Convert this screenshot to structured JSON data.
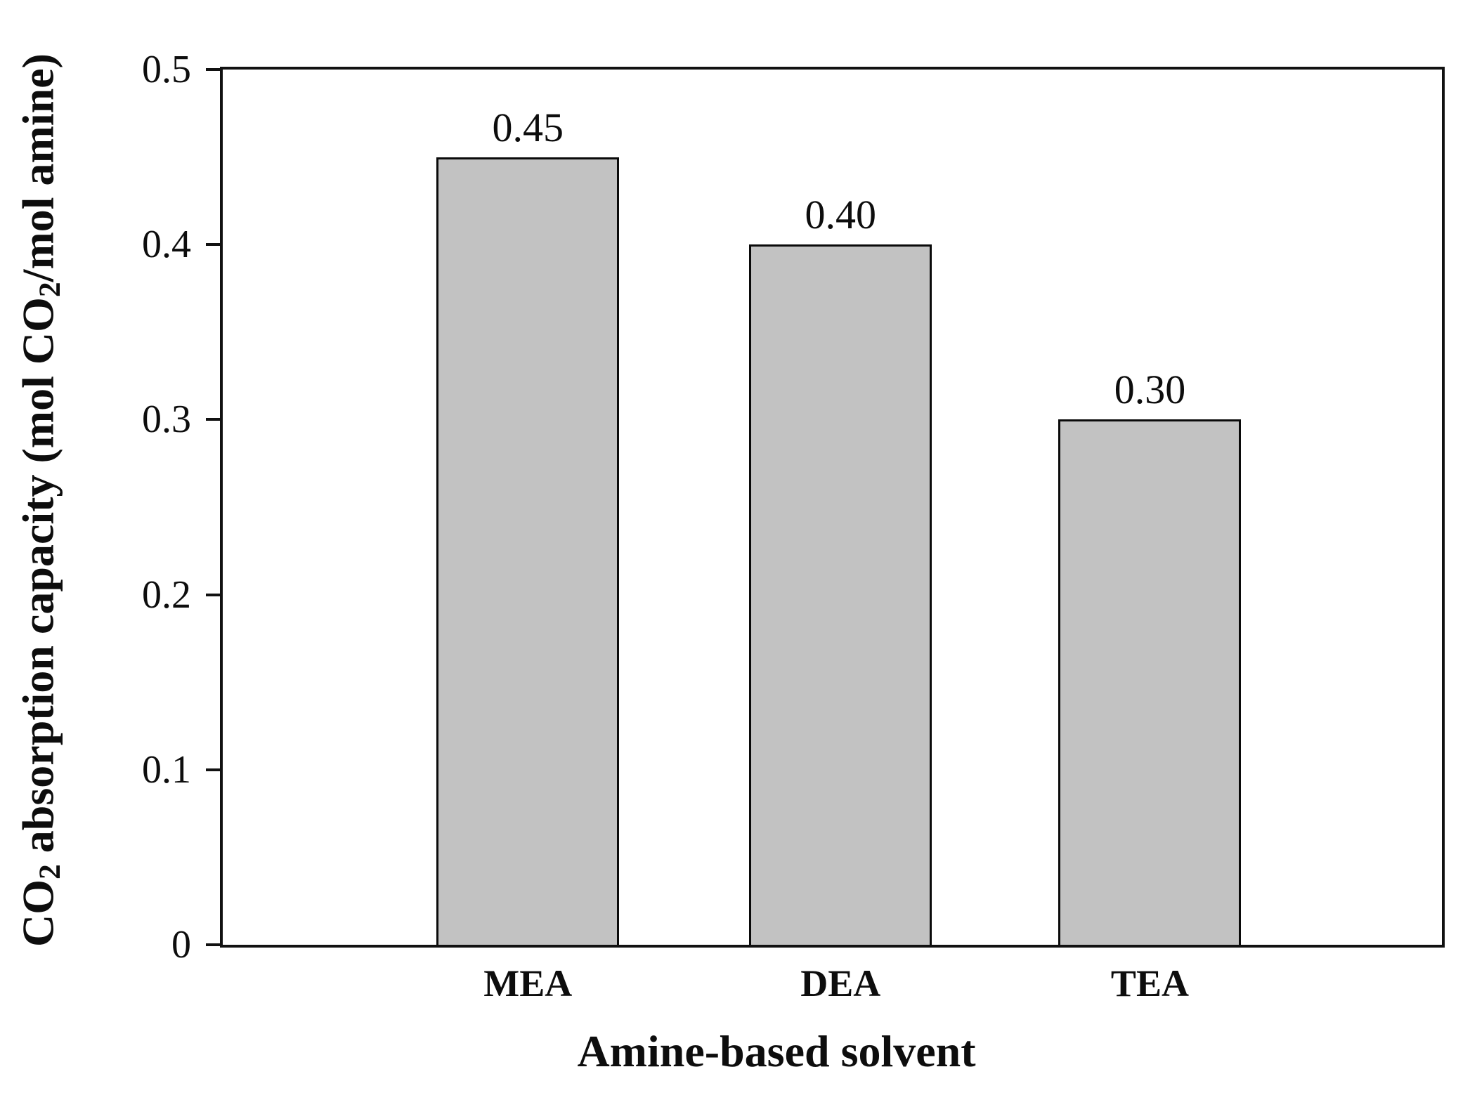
{
  "figure": {
    "background": "#ffffff"
  },
  "chart_data": {
    "type": "bar",
    "title": "",
    "categories": [
      "MEA",
      "DEA",
      "TEA"
    ],
    "values": [
      0.45,
      0.4,
      0.3
    ],
    "bar_value_labels": [
      "0.45",
      "0.40",
      "0.30"
    ],
    "xlabel": "Amine-based solvent",
    "ylabel": "CO2 absorption capacity (mol CO2/mol amine)",
    "ylabel_parts": [
      {
        "text": "CO"
      },
      {
        "text": "2",
        "subscript": true
      },
      {
        "text": " absorption capacity (mol CO"
      },
      {
        "text": "2",
        "subscript": true
      },
      {
        "text": "/mol amine)"
      }
    ],
    "ylim": [
      0,
      0.5
    ],
    "yticks": [
      {
        "value": 0,
        "label": "0"
      },
      {
        "value": 0.1,
        "label": "0.1"
      },
      {
        "value": 0.2,
        "label": "0.2"
      },
      {
        "value": 0.3,
        "label": "0.3"
      },
      {
        "value": 0.4,
        "label": "0.4"
      },
      {
        "value": 0.5,
        "label": "0.5"
      }
    ],
    "grid": false,
    "legend": "none",
    "colors": {
      "bar_fill": "#c2c2c2",
      "bar_border": "#0a0a0a",
      "axis": "#111111",
      "text": "#0d0d0d"
    }
  }
}
